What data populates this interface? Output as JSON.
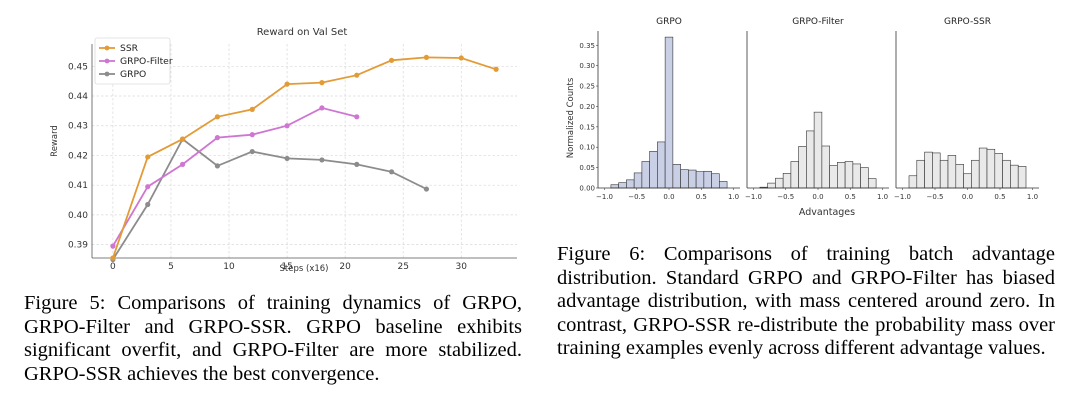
{
  "figure5": {
    "caption_label": "Figure 5:",
    "caption_text": "Comparisons of training dynamics of GRPO, GRPO-Filter and GRPO-SSR. GRPO baseline exhibits significant overfit, and GRPO-Filter are more stabilized. GRPO-SSR achieves the best convergence."
  },
  "figure6": {
    "caption_label": "Figure 6:",
    "caption_text": "Comparisons of training batch advantage distribution. Standard GRPO and GRPO-Filter has biased advantage distribution, with mass centered around zero. In contrast, GRPO-SSR re-distribute the probability mass over training examples evenly across different advantage values."
  },
  "colors": {
    "ssr": "#e39b37",
    "filter": "#cf76d2",
    "grpo": "#8c8c8c",
    "hist_grpo": "#c9d0e6",
    "hist_other": "#e9e9e9"
  },
  "chart_data": [
    {
      "type": "line",
      "title": "Reward on Val Set",
      "xlabel": "Steps (x16)",
      "ylabel": "Reward",
      "xlim": [
        -1.8,
        34.8
      ],
      "ylim": [
        0.3855,
        0.4575
      ],
      "xticks": [
        0,
        5,
        10,
        15,
        20,
        25,
        30
      ],
      "yticks": [
        0.39,
        0.4,
        0.41,
        0.42,
        0.43,
        0.44,
        0.45
      ],
      "ytick_labels": [
        "0.39",
        "0.40",
        "0.41",
        "0.42",
        "0.43",
        "0.44",
        "0.45"
      ],
      "grid": true,
      "legend": "top-left",
      "series": [
        {
          "name": "SSR",
          "color_key": "ssr",
          "x": [
            0,
            3,
            6,
            9,
            12,
            15,
            18,
            21,
            24,
            27,
            30,
            33
          ],
          "y": [
            0.3855,
            0.4195,
            0.4255,
            0.433,
            0.4355,
            0.444,
            0.4445,
            0.447,
            0.452,
            0.453,
            0.4528,
            0.449
          ]
        },
        {
          "name": "GRPO-Filter",
          "color_key": "filter",
          "x": [
            0,
            3,
            6,
            9,
            12,
            15,
            18,
            21
          ],
          "y": [
            0.3895,
            0.4095,
            0.417,
            0.426,
            0.427,
            0.43,
            0.436,
            0.433
          ]
        },
        {
          "name": "GRPO",
          "color_key": "grpo",
          "x": [
            0,
            3,
            6,
            9,
            12,
            15,
            18,
            21,
            24,
            27
          ],
          "y": [
            0.385,
            0.4035,
            0.4255,
            0.4165,
            0.4213,
            0.419,
            0.4185,
            0.417,
            0.4145,
            0.4087
          ]
        }
      ]
    },
    {
      "type": "bar",
      "subtype": "histogram",
      "ylabel": "Normalized Counts",
      "xlabel": "Advantages",
      "xlim": [
        -1.1,
        1.1
      ],
      "ylim": [
        0,
        0.385
      ],
      "xticks": [
        -1.0,
        -0.5,
        0.0,
        0.5,
        1.0
      ],
      "xtick_labels": [
        "−1.0",
        "−0.5",
        "0.0",
        "0.5",
        "1.0"
      ],
      "yticks": [
        0.0,
        0.05,
        0.1,
        0.15,
        0.2,
        0.25,
        0.3,
        0.35
      ],
      "ytick_labels": [
        "0.00",
        "0.05",
        "0.10",
        "0.15",
        "0.20",
        "0.25",
        "0.30",
        "0.35"
      ],
      "bin_edges": [
        -0.9,
        -0.78,
        -0.66,
        -0.54,
        -0.42,
        -0.3,
        -0.18,
        -0.06,
        0.06,
        0.18,
        0.3,
        0.42,
        0.54,
        0.66,
        0.78,
        0.9
      ],
      "panels": [
        {
          "title": "GRPO",
          "color_key": "hist_grpo",
          "values": [
            0.008,
            0.013,
            0.02,
            0.037,
            0.065,
            0.09,
            0.113,
            0.37,
            0.058,
            0.045,
            0.044,
            0.04,
            0.041,
            0.035,
            0.016
          ]
        },
        {
          "title": "GRPO-Filter",
          "color_key": "hist_other",
          "values": [
            0.002,
            0.012,
            0.024,
            0.036,
            0.065,
            0.102,
            0.14,
            0.186,
            0.103,
            0.055,
            0.063,
            0.065,
            0.059,
            0.05,
            0.023
          ]
        },
        {
          "title": "GRPO-SSR",
          "color_key": "hist_other",
          "values": [
            0.03,
            0.068,
            0.088,
            0.086,
            0.068,
            0.08,
            0.058,
            0.035,
            0.068,
            0.098,
            0.095,
            0.085,
            0.068,
            0.056,
            0.053
          ]
        }
      ]
    }
  ]
}
